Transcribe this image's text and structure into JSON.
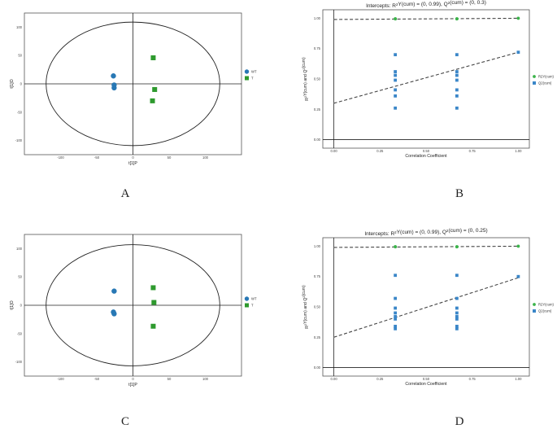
{
  "panel_labels": [
    "A",
    "B",
    "C",
    "D"
  ],
  "chart_data": [
    {
      "type": "scatter",
      "kind": "score",
      "id": "A",
      "xlabel": "t[1]P",
      "ylabel": "t[1]O",
      "xlim": [
        -150,
        150
      ],
      "ylim": [
        -125,
        125
      ],
      "xticks": [
        -100,
        -50,
        0,
        50,
        100
      ],
      "yticks": [
        -100,
        -50,
        0,
        50,
        100
      ],
      "ellipse": {
        "rx": 120,
        "ry": 109
      },
      "series": [
        {
          "name": "WT",
          "marker": "circle",
          "color": "#2878b5",
          "points": [
            [
              -27,
              14
            ],
            [
              -26,
              -2
            ],
            [
              -26,
              -7
            ]
          ]
        },
        {
          "name": "T",
          "marker": "square",
          "color": "#2e9a2e",
          "points": [
            [
              28,
              46
            ],
            [
              30,
              -10
            ],
            [
              27,
              -30
            ]
          ]
        }
      ],
      "legend": [
        "WT",
        "T"
      ]
    },
    {
      "type": "scatter",
      "kind": "permutation",
      "id": "B",
      "title_prefix": "Intercepts: R",
      "title_mid": "Y(cum) = (0, 0.99), Q",
      "title_suffix": "(cum) = (0, 0.3)",
      "sup": "2",
      "xlabel": "Correlation Coefficient",
      "ylabel_a": "R",
      "ylabel_b": "Y(cum) and Q",
      "ylabel_c": "(cum)",
      "xlim": [
        -0.06,
        1.06
      ],
      "ylim": [
        -0.07,
        1.07
      ],
      "xticks": [
        "0.00",
        "0.25",
        "0.50",
        "0.75",
        "1.00"
      ],
      "xtick_values": [
        0,
        0.25,
        0.5,
        0.75,
        1
      ],
      "yticks": [
        "0.00",
        "0.25",
        "0.50",
        "0.75",
        "1.00"
      ],
      "ytick_values": [
        0,
        0.25,
        0.5,
        0.75,
        1
      ],
      "r2_line": [
        0.99,
        1.0
      ],
      "q2_line": [
        0.3,
        0.72
      ],
      "series": [
        {
          "name": "R2Y(cum)",
          "marker": "circle",
          "color": "#3cb44b",
          "x": [
            0.333,
            0.333,
            0.333,
            0.667,
            0.667,
            0.667,
            1.0
          ],
          "y": [
            0.995,
            0.995,
            0.995,
            0.995,
            0.995,
            0.995,
            1.0
          ]
        },
        {
          "name": "Q2(cum)",
          "marker": "square",
          "color": "#3a86c8",
          "x": [
            0.333,
            0.333,
            0.333,
            0.333,
            0.333,
            0.333,
            0.333,
            0.667,
            0.667,
            0.667,
            0.667,
            0.667,
            0.667,
            0.667,
            1.0
          ],
          "y": [
            0.7,
            0.56,
            0.53,
            0.49,
            0.41,
            0.36,
            0.26,
            0.7,
            0.56,
            0.53,
            0.49,
            0.41,
            0.36,
            0.26,
            0.72
          ]
        }
      ],
      "legend": [
        "R2Y(cum)",
        "Q2(cum)"
      ]
    },
    {
      "type": "scatter",
      "kind": "score",
      "id": "C",
      "xlabel": "t[1]P",
      "ylabel": "t[1]O",
      "xlim": [
        -150,
        150
      ],
      "ylim": [
        -125,
        125
      ],
      "xticks": [
        -100,
        -50,
        0,
        50,
        100
      ],
      "yticks": [
        -100,
        -50,
        0,
        50,
        100
      ],
      "ellipse": {
        "rx": 120,
        "ry": 107
      },
      "series": [
        {
          "name": "WT",
          "marker": "circle",
          "color": "#2878b5",
          "points": [
            [
              -26,
              25
            ],
            [
              -27,
              -12
            ],
            [
              -26,
              -15
            ]
          ]
        },
        {
          "name": "T",
          "marker": "square",
          "color": "#2e9a2e",
          "points": [
            [
              28,
              31
            ],
            [
              29,
              5
            ],
            [
              28,
              -37
            ]
          ]
        }
      ],
      "legend": [
        "WT",
        "T"
      ]
    },
    {
      "type": "scatter",
      "kind": "permutation",
      "id": "D",
      "title_prefix": "Intercepts: R",
      "title_mid": "Y(cum) = (0, 0.99), Q",
      "title_suffix": "(cum) = (0, 0.25)",
      "sup": "2",
      "xlabel": "Correlation Coefficient",
      "ylabel_a": "R",
      "ylabel_b": "Y(cum) and Q",
      "ylabel_c": "(cum)",
      "xlim": [
        -0.06,
        1.06
      ],
      "ylim": [
        -0.07,
        1.07
      ],
      "xticks": [
        "0.00",
        "0.25",
        "0.50",
        "0.75",
        "1.00"
      ],
      "xtick_values": [
        0,
        0.25,
        0.5,
        0.75,
        1
      ],
      "yticks": [
        "0.00",
        "0.25",
        "0.50",
        "0.75",
        "1.00"
      ],
      "ytick_values": [
        0,
        0.25,
        0.5,
        0.75,
        1
      ],
      "r2_line": [
        0.99,
        1.0
      ],
      "q2_line": [
        0.25,
        0.74
      ],
      "series": [
        {
          "name": "R2Y(cum)",
          "marker": "circle",
          "color": "#3cb44b",
          "x": [
            0.333,
            0.333,
            0.333,
            0.667,
            0.667,
            0.667,
            1.0
          ],
          "y": [
            0.995,
            0.995,
            0.995,
            0.995,
            0.995,
            0.995,
            1.0
          ]
        },
        {
          "name": "Q2(cum)",
          "marker": "square",
          "color": "#3a86c8",
          "x": [
            0.333,
            0.333,
            0.333,
            0.333,
            0.333,
            0.333,
            0.333,
            0.333,
            0.667,
            0.667,
            0.667,
            0.667,
            0.667,
            0.667,
            0.667,
            0.667,
            1.0
          ],
          "y": [
            0.76,
            0.57,
            0.49,
            0.45,
            0.42,
            0.4,
            0.34,
            0.32,
            0.76,
            0.57,
            0.49,
            0.45,
            0.42,
            0.4,
            0.34,
            0.32,
            0.75
          ]
        }
      ],
      "legend": [
        "R2Y(cum)",
        "Q2(cum)"
      ]
    }
  ]
}
